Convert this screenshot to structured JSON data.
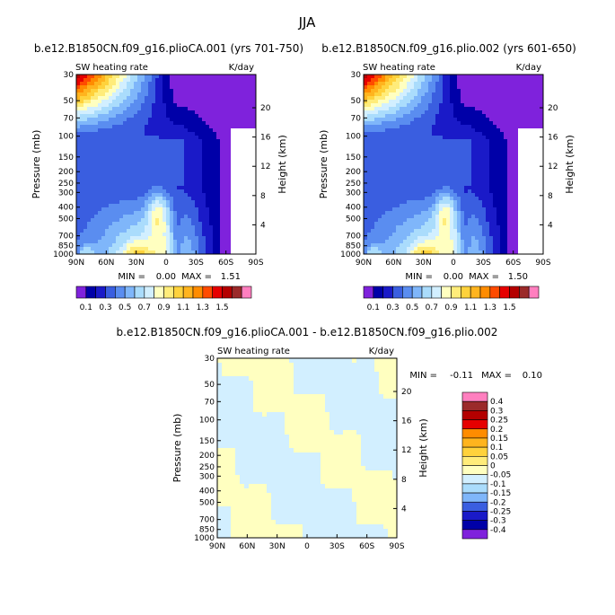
{
  "figure_title": "JJA",
  "colors": {
    "abs_scale": [
      "#7f22dc",
      "#0000a8",
      "#1a1ac8",
      "#3a5ee0",
      "#5a8df0",
      "#7fb6fa",
      "#aadcfc",
      "#d2efff",
      "#ffffc0",
      "#ffec7a",
      "#ffd23c",
      "#ffb41e",
      "#ff8c00",
      "#ff4b00",
      "#e60000",
      "#b40000",
      "#9b2a2a",
      "#ff7fbf"
    ],
    "diff_scale": [
      "#7f22dc",
      "#0000a8",
      "#1a1ac8",
      "#3a5ee0",
      "#5a8df0",
      "#7fb6fa",
      "#aadcfc",
      "#d2efff",
      "#ffffc0",
      "#ffec7a",
      "#ffd23c",
      "#ffb41e",
      "#ff8c00",
      "#ff4b00",
      "#e60000",
      "#b40000",
      "#9b2a2a",
      "#ff7fbf"
    ]
  },
  "chart_data": [
    {
      "type": "heatmap",
      "panel_id": "p1",
      "title": "b.e12.B1850CN.f09_g16.plioCA.001 (yrs 701-750)",
      "left_label": "SW heating rate",
      "right_label": "K/day",
      "ylabel": "Pressure (mb)",
      "ylabel_right": "Height (km)",
      "x_ticks": [
        "90N",
        "60N",
        "30N",
        "0",
        "30S",
        "60S",
        "90S"
      ],
      "x_values": [
        90,
        60,
        30,
        0,
        -30,
        -60,
        -90
      ],
      "y_ticks": [
        "30",
        "50",
        "70",
        "100",
        "150",
        "200",
        "250",
        "300",
        "400",
        "500",
        "700",
        "850",
        "1000"
      ],
      "y_values": [
        30,
        50,
        70,
        100,
        150,
        200,
        250,
        300,
        400,
        500,
        700,
        850,
        1000
      ],
      "height_ticks": [
        "20",
        "16",
        "12",
        "8",
        "4"
      ],
      "height_values": [
        20,
        16,
        12,
        8,
        4
      ],
      "ylim": [
        30,
        1000
      ],
      "xlim": [
        90,
        -90
      ],
      "min_label": "MIN =",
      "min_value": "0.00",
      "max_label": "MAX =",
      "max_value": "1.51"
    },
    {
      "type": "heatmap",
      "panel_id": "p2",
      "title": "b.e12.B1850CN.f09_g16.plio.002 (yrs 601-650)",
      "left_label": "SW heating rate",
      "right_label": "K/day",
      "ylabel": "Pressure (mb)",
      "ylabel_right": "Height (km)",
      "x_ticks": [
        "90N",
        "60N",
        "30N",
        "0",
        "30S",
        "60S",
        "90S"
      ],
      "x_values": [
        90,
        60,
        30,
        0,
        -30,
        -60,
        -90
      ],
      "y_ticks": [
        "30",
        "50",
        "70",
        "100",
        "150",
        "200",
        "250",
        "300",
        "400",
        "500",
        "700",
        "850",
        "1000"
      ],
      "y_values": [
        30,
        50,
        70,
        100,
        150,
        200,
        250,
        300,
        400,
        500,
        700,
        850,
        1000
      ],
      "height_ticks": [
        "20",
        "16",
        "12",
        "8",
        "4"
      ],
      "height_values": [
        20,
        16,
        12,
        8,
        4
      ],
      "ylim": [
        30,
        1000
      ],
      "xlim": [
        90,
        -90
      ],
      "min_label": "MIN =",
      "min_value": "0.00",
      "max_label": "MAX =",
      "max_value": "1.50"
    },
    {
      "type": "heatmap",
      "panel_id": "p3",
      "title": "b.e12.B1850CN.f09_g16.plioCA.001 - b.e12.B1850CN.f09_g16.plio.002",
      "left_label": "SW heating rate",
      "right_label": "K/day",
      "ylabel": "Pressure (mb)",
      "ylabel_right": "Height (km)",
      "x_ticks": [
        "90N",
        "60N",
        "30N",
        "0",
        "30S",
        "60S",
        "90S"
      ],
      "x_values": [
        90,
        60,
        30,
        0,
        -30,
        -60,
        -90
      ],
      "y_ticks": [
        "30",
        "50",
        "70",
        "100",
        "150",
        "200",
        "250",
        "300",
        "400",
        "500",
        "700",
        "850",
        "1000"
      ],
      "y_values": [
        30,
        50,
        70,
        100,
        150,
        200,
        250,
        300,
        400,
        500,
        700,
        850,
        1000
      ],
      "height_ticks": [
        "20",
        "16",
        "12",
        "8",
        "4"
      ],
      "height_values": [
        20,
        16,
        12,
        8,
        4
      ],
      "ylim": [
        30,
        1000
      ],
      "xlim": [
        90,
        -90
      ],
      "min_label": "MIN =",
      "min_value": "-0.11",
      "max_label": "MAX =",
      "max_value": "0.10"
    }
  ],
  "abs_colorbar_labels": [
    "0.1",
    "0.3",
    "0.5",
    "0.7",
    "0.9",
    "1.1",
    "1.3",
    "1.5"
  ],
  "diff_colorbar_labels": [
    "0.4",
    "0.3",
    "0.25",
    "0.2",
    "0.15",
    "0.1",
    "0.05",
    "0",
    "-0.05",
    "-0.1",
    "-0.15",
    "-0.2",
    "-0.25",
    "-0.3",
    "-0.4"
  ]
}
